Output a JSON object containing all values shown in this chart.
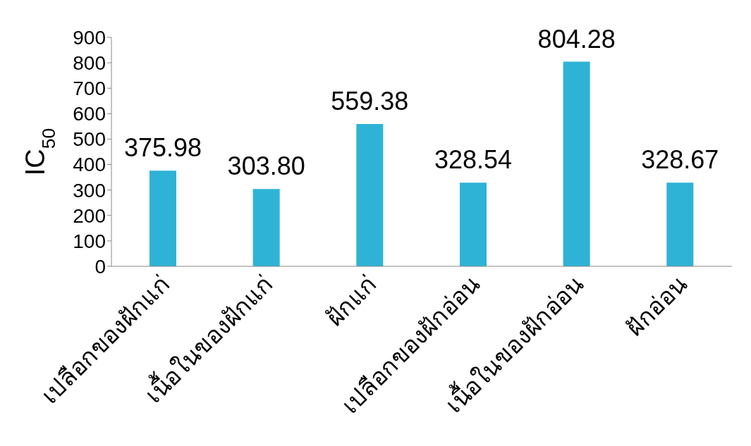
{
  "chart_data": {
    "type": "bar",
    "ylabel": "IC$_{50}$",
    "categories": [
      "เปลือกของฝักแก่",
      "เนื้อในของฝักแก่",
      "ฝักแก่",
      "เปลือกของฝักอ่อน",
      "เนื้อในของฝักอ่อน",
      "ฝักอ่อน"
    ],
    "values": [
      375.98,
      303.8,
      559.38,
      328.54,
      804.28,
      328.67
    ],
    "value_labels": [
      "375.98",
      "303.80",
      "559.38",
      "328.54",
      "804.28",
      "328.67"
    ],
    "color": "#2eb3d6",
    "ylim": [
      0,
      900
    ],
    "yticks": [
      0,
      100,
      200,
      300,
      400,
      500,
      600,
      700,
      800,
      900
    ],
    "grid": false,
    "legend": false
  }
}
